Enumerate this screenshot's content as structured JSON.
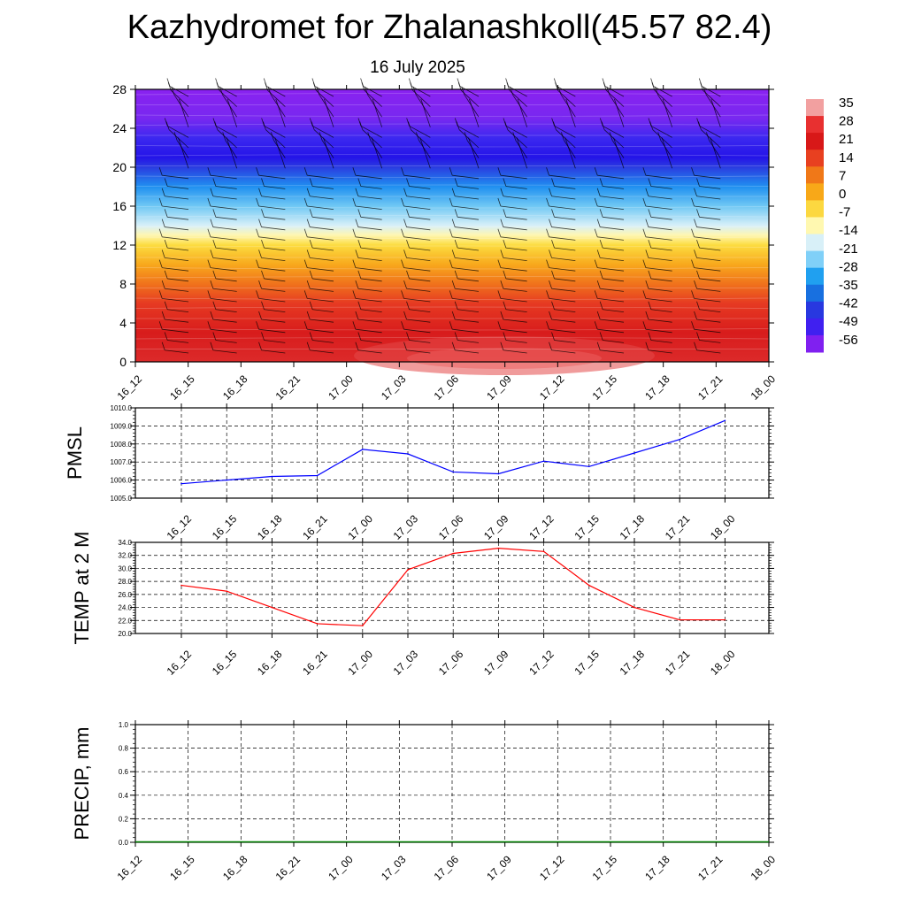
{
  "title": "Kazhydromet for Zhalanashkoll(45.57 82.4)",
  "subtitle": "16 July 2025",
  "chart_data": [
    {
      "type": "heatmap",
      "name": "temperature-wind-cross-section",
      "x": [
        "16_12",
        "16_15",
        "16_18",
        "16_21",
        "17_00",
        "17_03",
        "17_06",
        "17_09",
        "17_12",
        "17_15",
        "17_18",
        "17_21",
        "18_00"
      ],
      "ylim": [
        0,
        28
      ],
      "yticks": [
        0,
        4,
        8,
        12,
        16,
        20,
        24,
        28
      ],
      "colorbar": {
        "labels": [
          "35",
          "28",
          "21",
          "14",
          "7",
          "0",
          "-7",
          "-14",
          "-21",
          "-28",
          "-35",
          "-42",
          "-49",
          "-56"
        ],
        "colors": [
          "#f2a0a0",
          "#e83030",
          "#d81818",
          "#e84020",
          "#f07818",
          "#f8a818",
          "#fcd840",
          "#fff8b0",
          "#d8f0f8",
          "#80d0f8",
          "#20a0f0",
          "#1870e0",
          "#2838e0",
          "#4020f0",
          "#8020f0"
        ]
      },
      "levels": [
        {
          "y": 0,
          "color": "#dc2a2a"
        },
        {
          "y": 3,
          "color": "#d81c1c"
        },
        {
          "y": 6,
          "color": "#e63a22"
        },
        {
          "y": 8,
          "color": "#f0721c"
        },
        {
          "y": 10,
          "color": "#f8a81c"
        },
        {
          "y": 12,
          "color": "#fcdc40"
        },
        {
          "y": 13,
          "color": "#fff6b0"
        },
        {
          "y": 14,
          "color": "#d8f0f8"
        },
        {
          "y": 16,
          "color": "#70c8f4"
        },
        {
          "y": 18,
          "color": "#2090f0"
        },
        {
          "y": 20,
          "color": "#2a3ce0"
        },
        {
          "y": 21,
          "color": "#2414e8"
        },
        {
          "y": 23,
          "color": "#3c28f0"
        },
        {
          "y": 25,
          "color": "#7828f0"
        },
        {
          "y": 28,
          "color": "#8a22f0"
        }
      ]
    },
    {
      "type": "line",
      "name": "pmsl",
      "ylabel": "PMSL",
      "x": [
        "16_12",
        "16_15",
        "16_18",
        "16_21",
        "17_00",
        "17_03",
        "17_06",
        "17_09",
        "17_12",
        "17_15",
        "17_18",
        "17_21",
        "18_00"
      ],
      "values": [
        1005.8,
        1006.0,
        1006.2,
        1006.25,
        1007.7,
        1007.45,
        1006.45,
        1006.35,
        1007.05,
        1006.75,
        1007.5,
        1008.25,
        1009.3
      ],
      "ylim": [
        1005.0,
        1010.0
      ],
      "yticks": [
        "1005.0",
        "1006.0",
        "1007.0",
        "1008.0",
        "1009.0",
        "1010.0"
      ],
      "color": "#0000ff"
    },
    {
      "type": "line",
      "name": "temp-2m",
      "ylabel": "TEMP at 2 M",
      "x": [
        "16_12",
        "16_15",
        "16_18",
        "16_21",
        "17_00",
        "17_03",
        "17_06",
        "17_09",
        "17_12",
        "17_15",
        "17_18",
        "17_21",
        "18_00"
      ],
      "values": [
        27.4,
        26.5,
        24.0,
        21.5,
        21.2,
        29.8,
        32.3,
        33.1,
        32.6,
        27.4,
        24.0,
        22.1,
        22.1
      ],
      "ylim": [
        20.0,
        34.0
      ],
      "yticks": [
        "20.0",
        "22.0",
        "24.0",
        "26.0",
        "28.0",
        "30.0",
        "32.0",
        "34.0"
      ],
      "color": "#ff0000"
    },
    {
      "type": "line",
      "name": "precip",
      "ylabel": "PRECIP, mm",
      "x": [
        "16_12",
        "16_15",
        "16_18",
        "16_21",
        "17_00",
        "17_03",
        "17_06",
        "17_09",
        "17_12",
        "17_15",
        "17_18",
        "17_21",
        "18_00"
      ],
      "values": [
        0,
        0,
        0,
        0,
        0,
        0,
        0,
        0,
        0,
        0,
        0,
        0,
        0
      ],
      "ylim": [
        0.0,
        1.0
      ],
      "yticks": [
        "0.0",
        "0.2",
        "0.4",
        "0.6",
        "0.8",
        "1.0"
      ],
      "color": "#008000"
    }
  ]
}
